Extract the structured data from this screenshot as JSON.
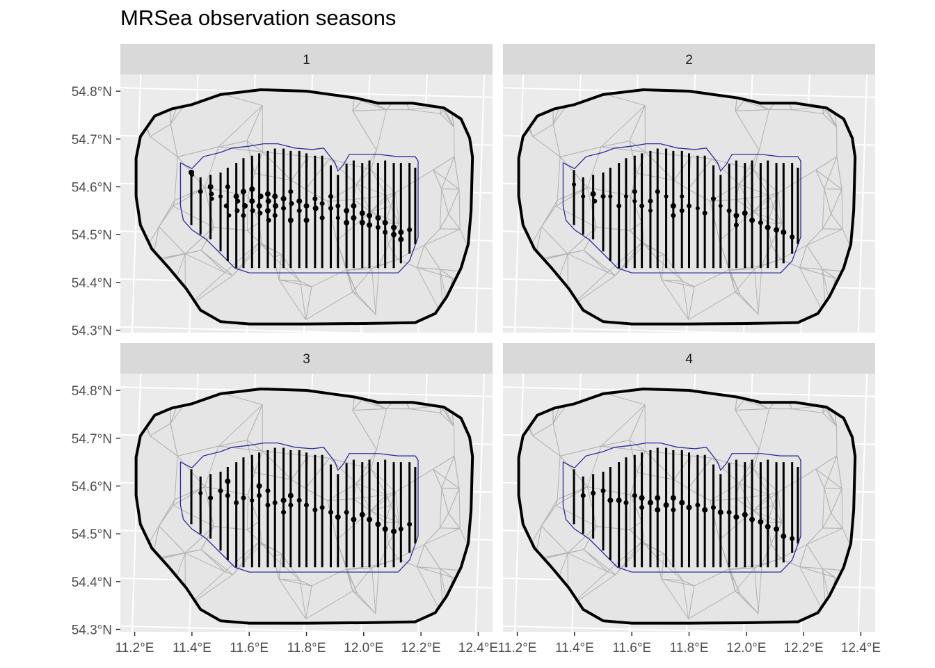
{
  "chart_data": {
    "type": "scatter",
    "title": "MRSea observation seasons",
    "xlabel": "",
    "ylabel": "",
    "facets": [
      "1",
      "2",
      "3",
      "4"
    ],
    "xlim": [
      11.15,
      12.45
    ],
    "ylim": [
      54.295,
      54.835
    ],
    "x_ticks": [
      11.2,
      11.4,
      11.6,
      11.8,
      12.0,
      12.2,
      12.4
    ],
    "x_tick_labels": [
      "11.2°E",
      "11.4°E",
      "11.6°E",
      "11.8°E",
      "12.0°E",
      "12.2°E",
      "12.4°E"
    ],
    "y_ticks": [
      54.3,
      54.4,
      54.5,
      54.6,
      54.7,
      54.8
    ],
    "y_tick_labels": [
      "54.3°N",
      "54.4°N",
      "54.5°N",
      "54.6°N",
      "54.7°N",
      "54.8°N"
    ],
    "grid": true,
    "legend": "none",
    "colors": {
      "panel_bg": "#ebebeb",
      "strip_bg": "#d9d9d9",
      "grid": "#ffffff",
      "mesh": "#b3b3b3",
      "outer_boundary": "#000000",
      "inner_boundary": "#2b2b9a",
      "points": "#000000"
    },
    "outer_boundary": [
      [
        11.4,
        54.772
      ],
      [
        11.5,
        54.793
      ],
      [
        11.64,
        54.803
      ],
      [
        11.8,
        54.8
      ],
      [
        11.97,
        54.786
      ],
      [
        12.05,
        54.775
      ],
      [
        12.17,
        54.775
      ],
      [
        12.28,
        54.765
      ],
      [
        12.34,
        54.742
      ],
      [
        12.37,
        54.702
      ],
      [
        12.38,
        54.662
      ],
      [
        12.375,
        54.55
      ],
      [
        12.365,
        54.48
      ],
      [
        12.34,
        54.43
      ],
      [
        12.29,
        54.37
      ],
      [
        12.25,
        54.335
      ],
      [
        12.18,
        54.316
      ],
      [
        12.0,
        54.314
      ],
      [
        11.8,
        54.313
      ],
      [
        11.6,
        54.313
      ],
      [
        11.5,
        54.318
      ],
      [
        11.43,
        54.342
      ],
      [
        11.38,
        54.387
      ],
      [
        11.32,
        54.43
      ],
      [
        11.26,
        54.47
      ],
      [
        11.22,
        54.52
      ],
      [
        11.205,
        54.58
      ],
      [
        11.205,
        54.66
      ],
      [
        11.22,
        54.705
      ],
      [
        11.27,
        54.748
      ],
      [
        11.33,
        54.763
      ]
    ],
    "inner_boundary": [
      [
        11.36,
        54.65
      ],
      [
        11.4,
        54.638
      ],
      [
        11.44,
        54.663
      ],
      [
        11.5,
        54.672
      ],
      [
        11.54,
        54.681
      ],
      [
        11.6,
        54.685
      ],
      [
        11.65,
        54.69
      ],
      [
        11.7,
        54.69
      ],
      [
        11.76,
        54.681
      ],
      [
        11.82,
        54.678
      ],
      [
        11.86,
        54.681
      ],
      [
        11.9,
        54.65
      ],
      [
        11.91,
        54.633
      ],
      [
        11.93,
        54.647
      ],
      [
        11.95,
        54.668
      ],
      [
        12.0,
        54.668
      ],
      [
        12.05,
        54.668
      ],
      [
        12.12,
        54.663
      ],
      [
        12.18,
        54.663
      ],
      [
        12.19,
        54.654
      ],
      [
        12.19,
        54.495
      ],
      [
        12.16,
        54.445
      ],
      [
        12.12,
        54.42
      ],
      [
        12.0,
        54.42
      ],
      [
        11.8,
        54.42
      ],
      [
        11.6,
        54.42
      ],
      [
        11.55,
        54.43
      ],
      [
        11.5,
        54.46
      ],
      [
        11.45,
        54.49
      ],
      [
        11.4,
        54.51
      ],
      [
        11.37,
        54.53
      ],
      [
        11.36,
        54.56
      ]
    ],
    "transect_lines": [
      [
        11.398,
        54.52,
        54.635
      ],
      [
        11.43,
        54.5,
        54.62
      ],
      [
        11.465,
        54.49,
        54.625
      ],
      [
        11.5,
        54.465,
        54.63
      ],
      [
        11.525,
        54.445,
        54.64
      ],
      [
        11.555,
        54.43,
        54.65
      ],
      [
        11.58,
        54.43,
        54.66
      ],
      [
        11.61,
        54.43,
        54.665
      ],
      [
        11.635,
        54.43,
        54.67
      ],
      [
        11.665,
        54.43,
        54.675
      ],
      [
        11.69,
        54.43,
        54.68
      ],
      [
        11.72,
        54.43,
        54.68
      ],
      [
        11.745,
        54.43,
        54.675
      ],
      [
        11.775,
        54.43,
        54.675
      ],
      [
        11.8,
        54.43,
        54.67
      ],
      [
        11.83,
        54.43,
        54.665
      ],
      [
        11.855,
        54.43,
        54.665
      ],
      [
        11.885,
        54.43,
        54.645
      ],
      [
        11.91,
        54.43,
        54.625
      ],
      [
        11.94,
        54.43,
        54.648
      ],
      [
        11.965,
        54.43,
        54.655
      ],
      [
        11.995,
        54.43,
        54.65
      ],
      [
        12.02,
        54.43,
        54.655
      ],
      [
        12.05,
        54.43,
        54.65
      ],
      [
        12.075,
        54.43,
        54.655
      ],
      [
        12.105,
        54.43,
        54.65
      ],
      [
        12.13,
        54.44,
        54.65
      ],
      [
        12.16,
        54.46,
        54.65
      ],
      [
        12.18,
        54.48,
        54.64
      ]
    ],
    "series": [
      {
        "name": "1",
        "points": [
          [
            11.398,
            54.63,
            6
          ],
          [
            11.4,
            54.625,
            4
          ],
          [
            11.43,
            54.59,
            5
          ],
          [
            11.465,
            54.6,
            6
          ],
          [
            11.468,
            54.585,
            5
          ],
          [
            11.47,
            54.575,
            4
          ],
          [
            11.5,
            54.58,
            4
          ],
          [
            11.52,
            54.56,
            5
          ],
          [
            11.525,
            54.6,
            5
          ],
          [
            11.53,
            54.54,
            4
          ],
          [
            11.555,
            54.58,
            6
          ],
          [
            11.56,
            54.57,
            5
          ],
          [
            11.558,
            54.55,
            5
          ],
          [
            11.58,
            54.59,
            6
          ],
          [
            11.585,
            54.56,
            6
          ],
          [
            11.58,
            54.54,
            5
          ],
          [
            11.61,
            54.595,
            6
          ],
          [
            11.61,
            54.57,
            6
          ],
          [
            11.612,
            54.55,
            5
          ],
          [
            11.64,
            54.58,
            6
          ],
          [
            11.635,
            54.56,
            6
          ],
          [
            11.638,
            54.545,
            5
          ],
          [
            11.665,
            54.585,
            6
          ],
          [
            11.667,
            54.57,
            6
          ],
          [
            11.665,
            54.55,
            6
          ],
          [
            11.668,
            54.53,
            5
          ],
          [
            11.69,
            54.58,
            6
          ],
          [
            11.692,
            54.56,
            6
          ],
          [
            11.69,
            54.54,
            5
          ],
          [
            11.72,
            54.575,
            6
          ],
          [
            11.72,
            54.555,
            5
          ],
          [
            11.745,
            54.59,
            5
          ],
          [
            11.748,
            54.565,
            5
          ],
          [
            11.745,
            54.53,
            6
          ],
          [
            11.775,
            54.57,
            6
          ],
          [
            11.775,
            54.55,
            5
          ],
          [
            11.8,
            54.56,
            6
          ],
          [
            11.8,
            54.53,
            6
          ],
          [
            11.83,
            54.575,
            5
          ],
          [
            11.832,
            54.555,
            6
          ],
          [
            11.855,
            54.565,
            5
          ],
          [
            11.855,
            54.535,
            5
          ],
          [
            11.885,
            54.58,
            5
          ],
          [
            11.885,
            54.555,
            5
          ],
          [
            11.91,
            54.56,
            5
          ],
          [
            11.91,
            54.535,
            4
          ],
          [
            11.94,
            54.55,
            6
          ],
          [
            11.94,
            54.525,
            6
          ],
          [
            11.965,
            54.56,
            6
          ],
          [
            11.965,
            54.535,
            6
          ],
          [
            11.995,
            54.545,
            6
          ],
          [
            11.995,
            54.525,
            6
          ],
          [
            12.02,
            54.54,
            6
          ],
          [
            12.02,
            54.52,
            6
          ],
          [
            12.05,
            54.535,
            6
          ],
          [
            12.05,
            54.515,
            5
          ],
          [
            12.075,
            54.525,
            6
          ],
          [
            12.075,
            54.505,
            5
          ],
          [
            12.105,
            54.515,
            6
          ],
          [
            12.105,
            54.5,
            6
          ],
          [
            12.13,
            54.505,
            6
          ],
          [
            12.13,
            54.49,
            6
          ],
          [
            12.16,
            54.51,
            5
          ]
        ]
      },
      {
        "name": "2",
        "points": [
          [
            11.398,
            54.605,
            4
          ],
          [
            11.43,
            54.58,
            4
          ],
          [
            11.465,
            54.585,
            6
          ],
          [
            11.47,
            54.57,
            5
          ],
          [
            11.5,
            54.58,
            5
          ],
          [
            11.525,
            54.58,
            4
          ],
          [
            11.555,
            54.56,
            5
          ],
          [
            11.58,
            54.58,
            4
          ],
          [
            11.61,
            54.59,
            5
          ],
          [
            11.61,
            54.57,
            4
          ],
          [
            11.635,
            54.56,
            5
          ],
          [
            11.665,
            54.57,
            5
          ],
          [
            11.665,
            54.55,
            4
          ],
          [
            11.69,
            54.59,
            5
          ],
          [
            11.72,
            54.58,
            4
          ],
          [
            11.745,
            54.56,
            6
          ],
          [
            11.745,
            54.54,
            5
          ],
          [
            11.775,
            54.58,
            4
          ],
          [
            11.775,
            54.55,
            5
          ],
          [
            11.8,
            54.56,
            5
          ],
          [
            11.83,
            54.555,
            4
          ],
          [
            11.855,
            54.545,
            5
          ],
          [
            11.885,
            54.575,
            5
          ],
          [
            11.91,
            54.56,
            4
          ],
          [
            11.94,
            54.55,
            5
          ],
          [
            11.965,
            54.54,
            6
          ],
          [
            11.965,
            54.52,
            5
          ],
          [
            11.995,
            54.545,
            6
          ],
          [
            12.02,
            54.53,
            6
          ],
          [
            12.05,
            54.525,
            5
          ],
          [
            12.075,
            54.515,
            6
          ],
          [
            12.105,
            54.51,
            6
          ],
          [
            12.13,
            54.505,
            6
          ],
          [
            12.16,
            54.495,
            5
          ]
        ]
      },
      {
        "name": "3",
        "points": [
          [
            11.43,
            54.585,
            4
          ],
          [
            11.465,
            54.575,
            5
          ],
          [
            11.5,
            54.59,
            5
          ],
          [
            11.525,
            54.61,
            6
          ],
          [
            11.525,
            54.58,
            5
          ],
          [
            11.555,
            54.565,
            5
          ],
          [
            11.58,
            54.575,
            5
          ],
          [
            11.61,
            54.57,
            4
          ],
          [
            11.635,
            54.6,
            6
          ],
          [
            11.635,
            54.58,
            5
          ],
          [
            11.665,
            54.59,
            5
          ],
          [
            11.665,
            54.56,
            5
          ],
          [
            11.69,
            54.565,
            5
          ],
          [
            11.72,
            54.57,
            6
          ],
          [
            11.72,
            54.545,
            5
          ],
          [
            11.745,
            54.58,
            6
          ],
          [
            11.745,
            54.56,
            5
          ],
          [
            11.775,
            54.57,
            5
          ],
          [
            11.8,
            54.56,
            5
          ],
          [
            11.83,
            54.55,
            5
          ],
          [
            11.855,
            54.555,
            5
          ],
          [
            11.885,
            54.545,
            5
          ],
          [
            11.91,
            54.535,
            6
          ],
          [
            11.94,
            54.545,
            5
          ],
          [
            11.965,
            54.53,
            6
          ],
          [
            11.995,
            54.54,
            6
          ],
          [
            12.02,
            54.53,
            6
          ],
          [
            12.05,
            54.52,
            6
          ],
          [
            12.075,
            54.51,
            6
          ],
          [
            12.105,
            54.505,
            6
          ],
          [
            12.13,
            54.51,
            5
          ],
          [
            12.16,
            54.52,
            5
          ]
        ]
      },
      {
        "name": "4",
        "points": [
          [
            11.43,
            54.58,
            5
          ],
          [
            11.465,
            54.585,
            5
          ],
          [
            11.5,
            54.59,
            5
          ],
          [
            11.525,
            54.57,
            6
          ],
          [
            11.555,
            54.57,
            6
          ],
          [
            11.58,
            54.565,
            5
          ],
          [
            11.61,
            54.58,
            5
          ],
          [
            11.635,
            54.575,
            6
          ],
          [
            11.635,
            54.555,
            5
          ],
          [
            11.665,
            54.565,
            6
          ],
          [
            11.69,
            54.575,
            6
          ],
          [
            11.69,
            54.55,
            6
          ],
          [
            11.72,
            54.56,
            6
          ],
          [
            11.745,
            54.575,
            6
          ],
          [
            11.745,
            54.55,
            5
          ],
          [
            11.775,
            54.565,
            6
          ],
          [
            11.8,
            54.555,
            6
          ],
          [
            11.83,
            54.56,
            5
          ],
          [
            11.855,
            54.55,
            6
          ],
          [
            11.885,
            54.555,
            5
          ],
          [
            11.91,
            54.545,
            6
          ],
          [
            11.94,
            54.545,
            5
          ],
          [
            11.965,
            54.535,
            6
          ],
          [
            11.995,
            54.54,
            6
          ],
          [
            12.02,
            54.53,
            6
          ],
          [
            12.05,
            54.525,
            6
          ],
          [
            12.075,
            54.515,
            6
          ],
          [
            12.105,
            54.51,
            6
          ],
          [
            12.13,
            54.495,
            6
          ],
          [
            12.16,
            54.49,
            5
          ]
        ]
      }
    ]
  }
}
